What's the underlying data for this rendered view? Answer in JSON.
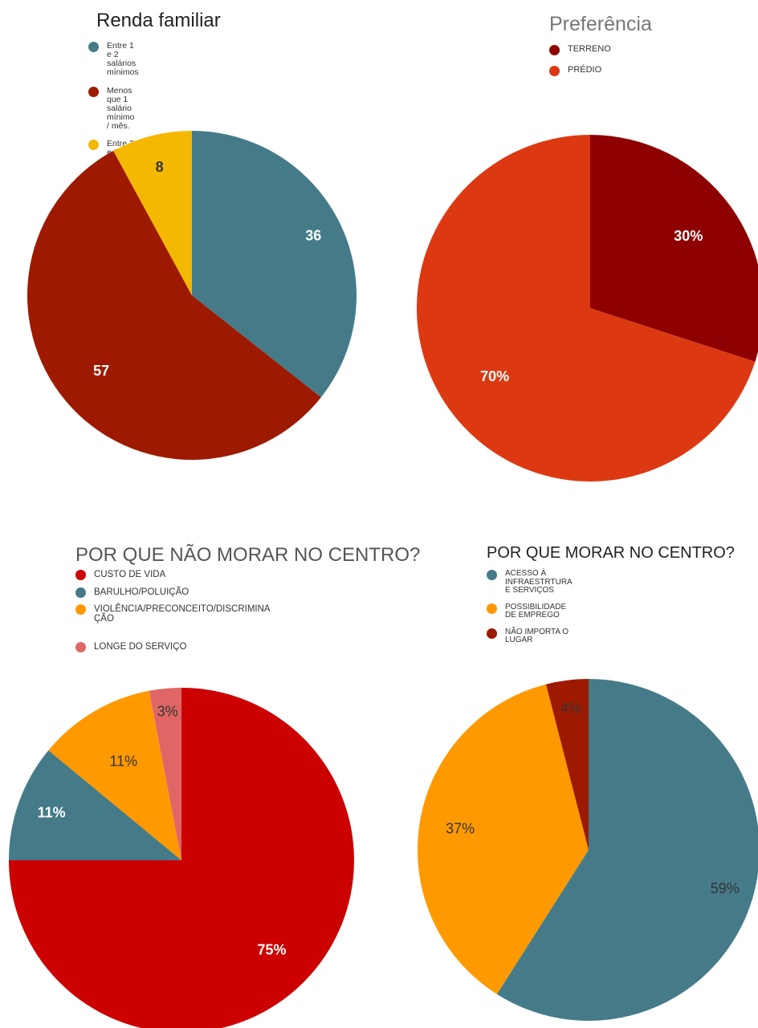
{
  "chart_data": [
    {
      "type": "pie",
      "title": "Renda familiar",
      "labels_shown_as": "values",
      "slices": [
        {
          "name": "Entre 1 e 2 salários mínimos",
          "value": 36,
          "label": "36",
          "color": "#457b89"
        },
        {
          "name": "Menos que 1 salário mínimo / mês.",
          "value": 57,
          "label": "57",
          "color": "#9d1a00"
        },
        {
          "name": "Entre 2 e 3 salários mínimos / mês.",
          "value": 8,
          "label": "8",
          "color": "#f5b800"
        }
      ]
    },
    {
      "type": "pie",
      "title": "Preferência",
      "labels_shown_as": "percent",
      "slices": [
        {
          "name": "TERRENO",
          "value": 30,
          "label": "30%",
          "color": "#8e0000"
        },
        {
          "name": "PRÉDIO",
          "value": 70,
          "label": "70%",
          "color": "#dc3912"
        }
      ]
    },
    {
      "type": "pie",
      "title": "POR QUE NÃO MORAR NO CENTRO?",
      "labels_shown_as": "percent",
      "slices": [
        {
          "name": "CUSTO DE VIDA",
          "value": 75,
          "label": "75%",
          "color": "#cc0000"
        },
        {
          "name": "BARULHO/POLUIÇÃO",
          "value": 11,
          "label": "11%",
          "color": "#457b89"
        },
        {
          "name": "VIOLÊNCIA/PRECONCEITO/DISCRIMINA\nÇÃO",
          "value": 11,
          "label": "11%",
          "color": "#ff9900"
        },
        {
          "name": "LONGE DO SERVIÇO",
          "value": 3,
          "label": "3%",
          "color": "#e06666"
        }
      ]
    },
    {
      "type": "pie",
      "title": "POR QUE MORAR NO CENTRO?",
      "labels_shown_as": "percent",
      "slices": [
        {
          "name": "ACESSO À INFRAESTRTURA E SERVIÇOS",
          "value": 59,
          "label": "59%",
          "color": "#457b89"
        },
        {
          "name": "POSSIBILIDADE DE EMPREGO",
          "value": 37,
          "label": "37%",
          "color": "#ff9900"
        },
        {
          "name": "NÃO IMPORTA O LUGAR",
          "value": 4,
          "label": "4%",
          "color": "#9d1a00"
        }
      ]
    }
  ]
}
